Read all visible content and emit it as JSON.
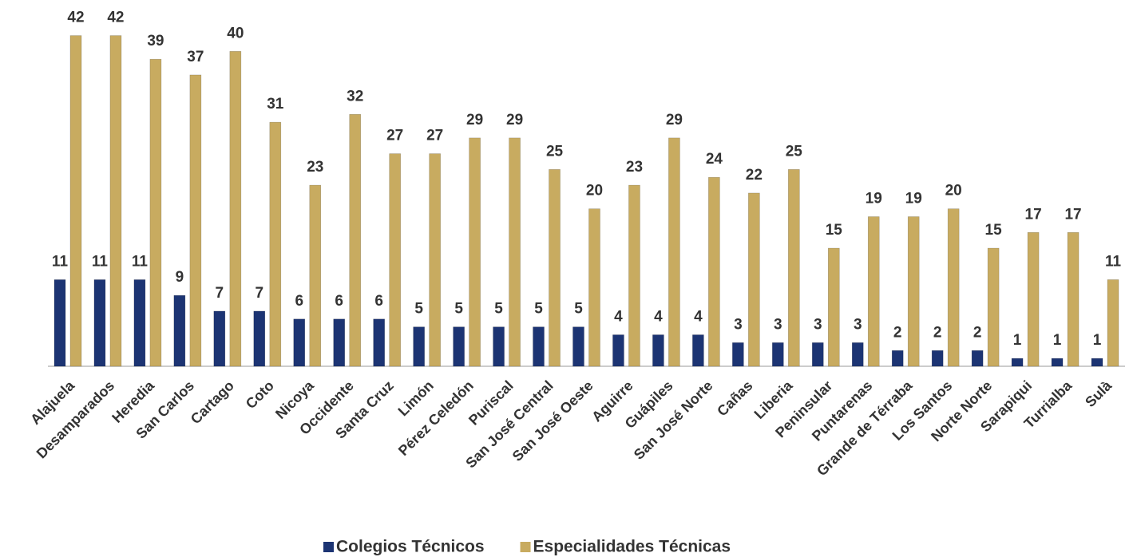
{
  "chart_data": {
    "type": "bar",
    "categories": [
      "Alajuela",
      "Desamparados",
      "Heredia",
      "San Carlos",
      "Cartago",
      "Coto",
      "Nicoya",
      "Occidente",
      "Santa Cruz",
      "Limón",
      "Pérez Celedón",
      "Puriscal",
      "San José Central",
      "San José Oeste",
      "Aguirre",
      "Guápiles",
      "San José Norte",
      "Cañas",
      "Liberia",
      "Peninsular",
      "Puntarenas",
      "Grande de Térraba",
      "Los Santos",
      "Norte Norte",
      "Sarapiqui",
      "Turrialba",
      "Sulà"
    ],
    "series": [
      {
        "name": "Colegios Técnicos",
        "color": "#1c3473",
        "values": [
          11,
          11,
          11,
          9,
          7,
          7,
          6,
          6,
          6,
          5,
          5,
          5,
          5,
          5,
          4,
          4,
          4,
          3,
          3,
          3,
          3,
          2,
          2,
          2,
          1,
          1,
          1
        ]
      },
      {
        "name": "Especialidades Técnicas",
        "color": "#c8ab60",
        "values": [
          42,
          42,
          39,
          37,
          40,
          31,
          23,
          32,
          27,
          27,
          29,
          29,
          25,
          20,
          23,
          29,
          24,
          22,
          25,
          15,
          19,
          19,
          20,
          15,
          17,
          17,
          11
        ]
      }
    ],
    "ylim": [
      0,
      45
    ]
  }
}
